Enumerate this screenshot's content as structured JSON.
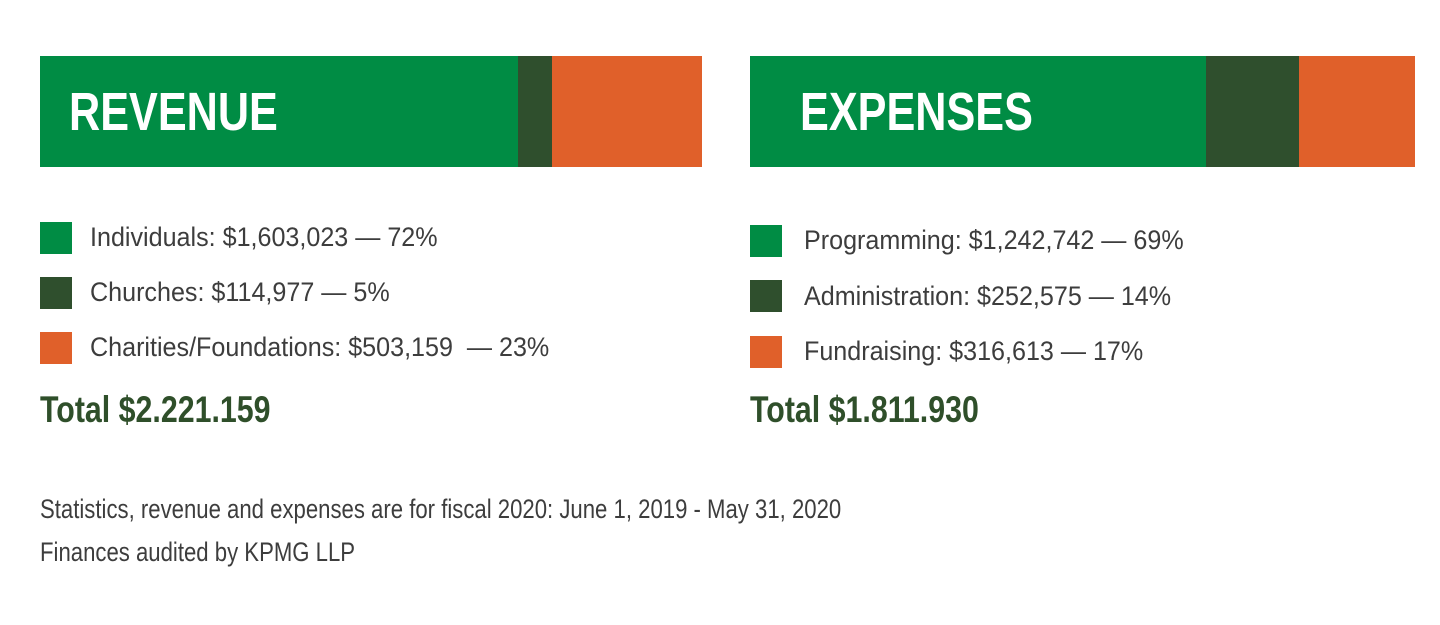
{
  "chart_data": [
    {
      "type": "bar",
      "orientation": "horizontal-stacked-100",
      "title": "REVENUE",
      "categories": [
        "Individuals",
        "Churches",
        "Charities/Foundations"
      ],
      "values": [
        1603023,
        114977,
        503159
      ],
      "percentages": [
        72,
        5,
        23
      ],
      "colors": [
        "#008c44",
        "#2f4f2d",
        "#e0602a"
      ],
      "legend": [
        "Individuals: $1,603,023 — 72%",
        "Churches: $114,977 — 5%",
        "Charities/Foundations: $503,159  — 23%"
      ],
      "legend_placement": "bottom",
      "total_label": "Total $2.221.159"
    },
    {
      "type": "bar",
      "orientation": "horizontal-stacked-100",
      "title": "EXPENSES",
      "categories": [
        "Programming",
        "Administration",
        "Fundraising"
      ],
      "values": [
        1242742,
        252575,
        316613
      ],
      "percentages": [
        69,
        14,
        17
      ],
      "colors": [
        "#008c44",
        "#2f4f2d",
        "#e0602a"
      ],
      "legend": [
        "Programming: $1,242,742 — 69%",
        "Administration: $252,575 — 14%",
        "Fundraising: $316,613 — 17%"
      ],
      "legend_placement": "bottom",
      "total_label": "Total $1.811.930"
    }
  ],
  "footnotes": [
    "Statistics, revenue and expenses are for fiscal 2020: June 1, 2019 - May 31, 2020",
    "Finances audited by KPMG LLP"
  ]
}
